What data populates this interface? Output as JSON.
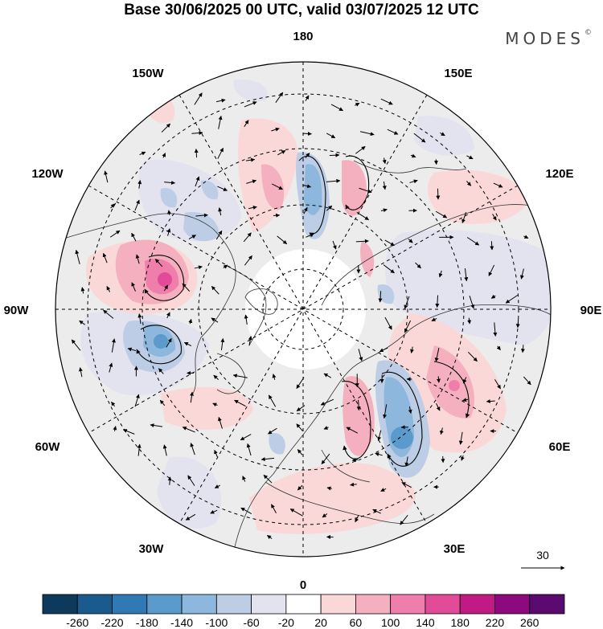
{
  "title": "Base 30/06/2025 00 UTC, valid 03/07/2025 12 UTC",
  "brand": "MODES",
  "brand_mark": "©",
  "longitude_labels": {
    "lon_180": "180",
    "lon_0": "0",
    "lon_90w": "90W",
    "lon_90e": "90E",
    "lon_150w": "150W",
    "lon_150e": "150E",
    "lon_120w": "120W",
    "lon_120e": "120E",
    "lon_60w": "60W",
    "lon_60e": "60E",
    "lon_30w": "30W",
    "lon_30e": "30E"
  },
  "reference_vector_label": "30",
  "colorbar": {
    "colors": [
      "#0d3a5c",
      "#1a5a8c",
      "#2f7ab5",
      "#5a9bcc",
      "#8db7dc",
      "#bccde5",
      "#e3e2ef",
      "#ffffff",
      "#fad8d8",
      "#f5b0bf",
      "#ef7eaa",
      "#e24b98",
      "#c21a85",
      "#8f097e",
      "#5b0a6f"
    ],
    "ticks": [
      "-260",
      "-220",
      "-180",
      "-140",
      "-100",
      "-60",
      "-20",
      "20",
      "60",
      "100",
      "140",
      "180",
      "220",
      "260"
    ]
  },
  "anomaly_colors": {
    "neg_strong": "#5a9bcc",
    "neg_mid": "#8db7dc",
    "neg_weak": "#bccde5",
    "neg_faint": "#e3e2ef",
    "pos_faint": "#fad8d8",
    "pos_weak": "#f5b0bf",
    "pos_mid": "#ef7eaa",
    "background": "#ececec"
  }
}
